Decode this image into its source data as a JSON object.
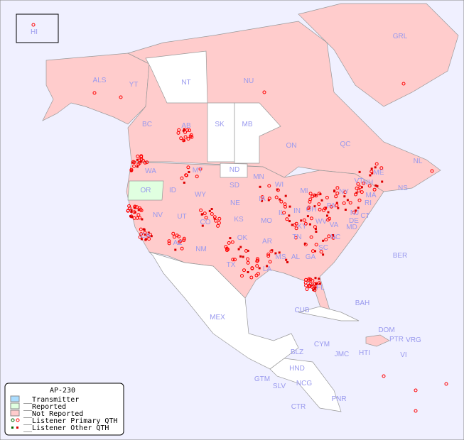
{
  "map": {
    "title": "AP-230",
    "colors": {
      "ocean": "#f0f0ff",
      "transmitter": "#aaddff",
      "reported": "#e0ffe0",
      "not_reported": "#ffcccc",
      "primary_qth": "#ff0000",
      "other_qth": "#dd0000",
      "label": "#9999ee"
    },
    "regions": [
      "HI",
      "ALS",
      "YT",
      "NT",
      "NU",
      "GRL",
      "BC",
      "AB",
      "SK",
      "MB",
      "ON",
      "QC",
      "NL",
      "NS",
      "WA",
      "OR",
      "ID",
      "MT",
      "WY",
      "ND",
      "SD",
      "NE",
      "MN",
      "WI",
      "IA",
      "MI",
      "IL",
      "IN",
      "OH",
      "PA",
      "NY",
      "VT",
      "NH",
      "ME",
      "MA",
      "RI",
      "CT",
      "NJ",
      "DE",
      "MD",
      "WV",
      "VA",
      "KY",
      "NC",
      "TN",
      "SC",
      "GA",
      "AL",
      "MS",
      "LA",
      "AR",
      "MO",
      "KS",
      "OK",
      "TX",
      "NM",
      "AZ",
      "CO",
      "UT",
      "NV",
      "CA",
      "FL",
      "MEX",
      "CUB",
      "BAH",
      "BER",
      "DOM",
      "PTR",
      "VRG",
      "HTI",
      "JMC",
      "CYM",
      "BLZ",
      "HND",
      "GTM",
      "SLV",
      "NCG",
      "CTR",
      "PNR",
      "VI"
    ]
  },
  "legend": {
    "title": "AP-230",
    "items": [
      {
        "label": "__Transmitter",
        "color": "#aaddff"
      },
      {
        "label": "__Reported",
        "color": "#e0ffe0"
      },
      {
        "label": "__Not Reported",
        "color": "#ffcccc"
      },
      {
        "label": "__Listener Primary QTH",
        "symbol": "circle"
      },
      {
        "label": "__Listener Other QTH",
        "symbol": "square"
      }
    ]
  }
}
